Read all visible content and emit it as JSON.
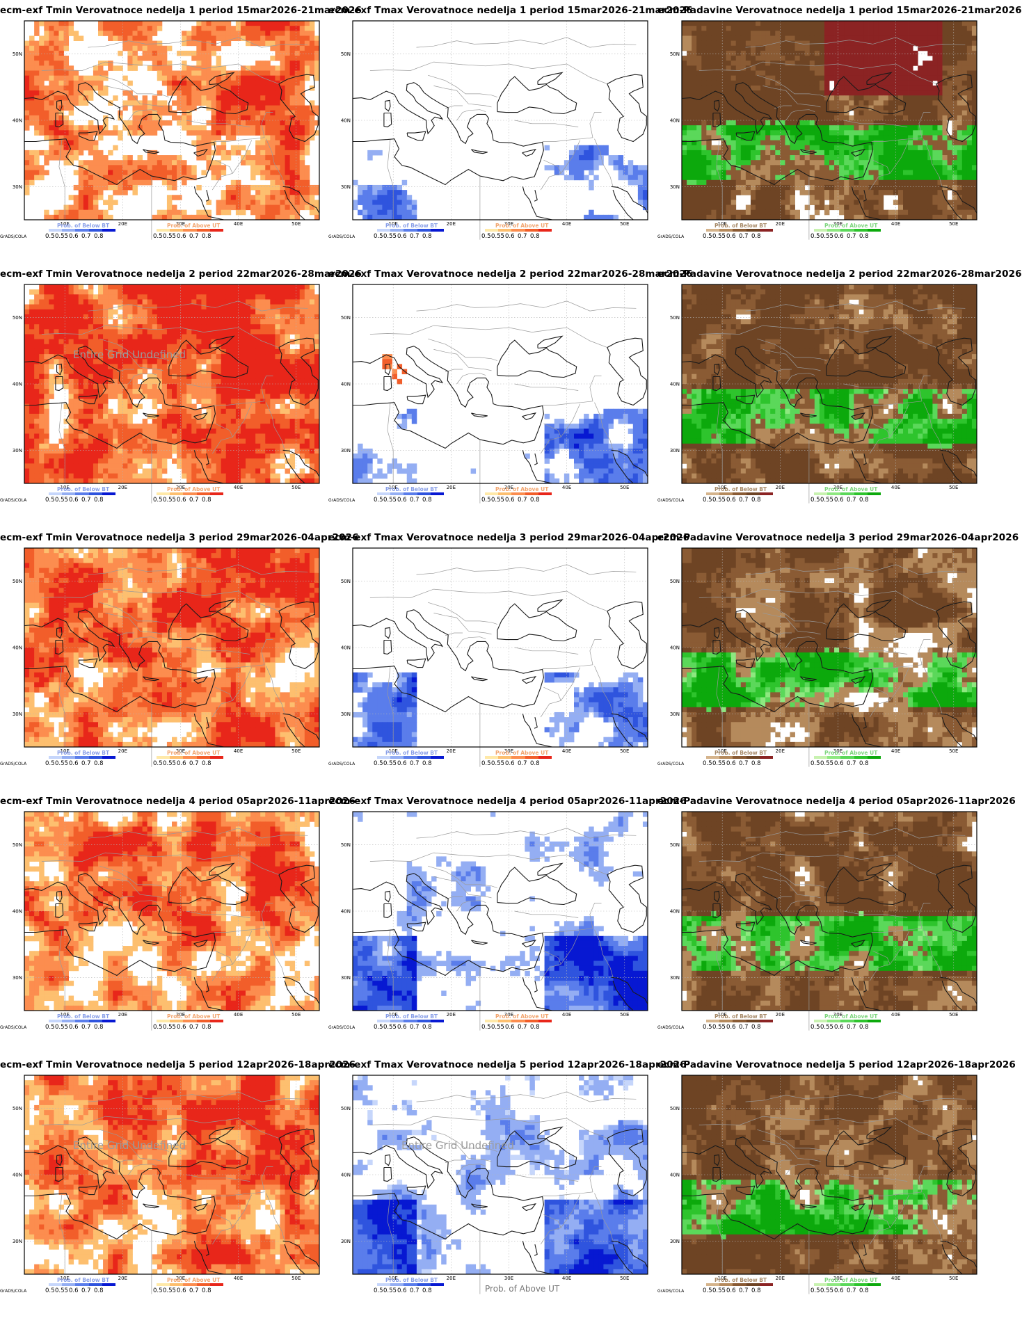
{
  "colors": {
    "tmin": [
      "#ffe9a8",
      "#fdbf6f",
      "#fc8d4f",
      "#f25e2a",
      "#e8261a"
    ],
    "tmax": [
      "#c6d6fb",
      "#94aef3",
      "#5a7deb",
      "#2f54de",
      "#0718d2"
    ],
    "dry": [
      "#d5b48c",
      "#b58a5c",
      "#8a5b34",
      "#6e4424",
      "#8b2323"
    ],
    "wet": [
      "#c8f2b0",
      "#8ee880",
      "#5bd85a",
      "#2ec42d",
      "#0ca90c"
    ]
  },
  "axes": {
    "lon_ticks": [
      "10E",
      "20E",
      "30E",
      "40E",
      "50E"
    ],
    "lat_ticks": [
      "30N",
      "40N",
      "50N"
    ]
  },
  "legend": {
    "below_caption": "Prob. of Below BT",
    "above_caption": "Prob. of Above UT",
    "levels": [
      "0.5",
      "0.55",
      "0.6",
      "0.7",
      "0.8"
    ],
    "grads_label": "GrADS/COLA"
  },
  "undefined_label": "Entire Grid Undefined",
  "footer_label": "Prob. of Above UT",
  "panels": [
    {
      "title": "ecm-exf Tmin Verovatnoce nedelja 1 period 15mar2026-21mar2026",
      "kind": "tmin",
      "coverage": 0.62,
      "intensity": 0.75
    },
    {
      "title": "ecm-exf Tmax Verovatnoce nedelja 1 period 15mar2026-21mar2026",
      "kind": "tmax",
      "coverage": 0.28,
      "intensity": 0.8
    },
    {
      "title": "ecm-Padavine Verovatnoce nedelja 1 period 15mar2026-21mar2026",
      "kind": "precip",
      "coverage": 0.8,
      "intensity": 0.75
    },
    {
      "title": "ecm-exf Tmin Verovatnoce nedelja 2 period 22mar2026-28mar2026",
      "kind": "tmin",
      "coverage": 0.85,
      "intensity": 0.7
    },
    {
      "title": "ecm-exf Tmax Verovatnoce nedelja 2 period 22mar2026-28mar2026",
      "kind": "tmax",
      "coverage": 0.35,
      "intensity": 0.75
    },
    {
      "title": "ecm-Padavine Verovatnoce nedelja 2 period 22mar2026-28mar2026",
      "kind": "precip",
      "coverage": 0.85,
      "intensity": 0.6
    },
    {
      "title": "ecm-exf Tmin Verovatnoce nedelja 3 period 29mar2026-04apr2026",
      "kind": "tmin",
      "coverage": 0.82,
      "intensity": 0.55
    },
    {
      "title": "ecm-exf Tmax Verovatnoce nedelja 3 period 29mar2026-04apr2026",
      "kind": "tmax",
      "coverage": 0.35,
      "intensity": 0.75
    },
    {
      "title": "ecm-Padavine Verovatnoce nedelja 3 period 29mar2026-04apr2026",
      "kind": "precip",
      "coverage": 0.8,
      "intensity": 0.5
    },
    {
      "title": "ecm-exf Tmin Verovatnoce nedelja 4 period 05apr2026-11apr2026",
      "kind": "tmin",
      "coverage": 0.75,
      "intensity": 0.5
    },
    {
      "title": "ecm-exf Tmax Verovatnoce nedelja 4 period 05apr2026-11apr2026",
      "kind": "tmax",
      "coverage": 0.65,
      "intensity": 0.55
    },
    {
      "title": "ecm-Padavine Verovatnoce nedelja 4 period 05apr2026-11apr2026",
      "kind": "precip",
      "coverage": 0.82,
      "intensity": 0.5
    },
    {
      "title": "ecm-exf Tmin Verovatnoce nedelja 5 period 12apr2026-18apr2026",
      "kind": "tmin",
      "coverage": 0.78,
      "intensity": 0.5
    },
    {
      "title": "ecm-exf Tmax Verovatnoce nedelja 5 period 12apr2026-18apr2026",
      "kind": "tmax",
      "coverage": 0.7,
      "intensity": 0.45
    },
    {
      "title": "ecm-Padavine Verovatnoce nedelja 5 period 12apr2026-18apr2026",
      "kind": "precip",
      "coverage": 0.85,
      "intensity": 0.5
    }
  ],
  "undefined_panels": [
    3,
    12,
    13
  ],
  "footer_panel": 13
}
